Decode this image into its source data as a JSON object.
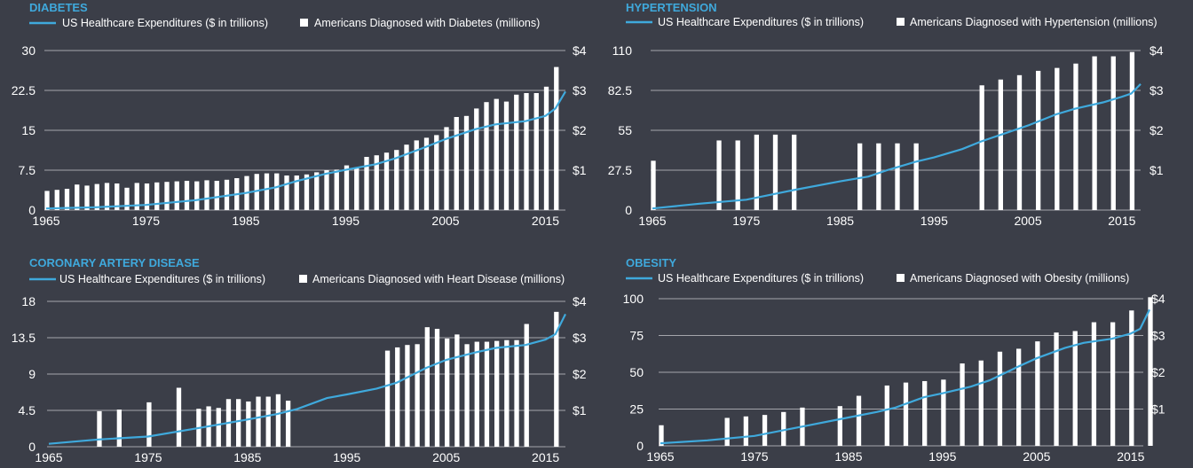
{
  "chart_data": [
    {
      "type": "bar",
      "title": "DIABETES",
      "legend_line": "US Healthcare Expenditures ($ in trillions)",
      "legend_bar": "Americans Diagnosed with Diabetes (millions)",
      "x_ticks": [
        "1965",
        "1975",
        "1985",
        "1995",
        "2005",
        "2015"
      ],
      "y_left_ticks": [
        "0",
        "7.5",
        "15",
        "22.5",
        "30"
      ],
      "y_right_ticks": [
        "$1",
        "$2",
        "$3",
        "$4"
      ],
      "ylim_left": [
        0,
        30
      ],
      "ylim_right": [
        0,
        4
      ],
      "xlim": [
        1965,
        2017
      ],
      "grid": true,
      "bars": {
        "years": [
          1965,
          1966,
          1967,
          1968,
          1969,
          1970,
          1971,
          1972,
          1973,
          1974,
          1975,
          1976,
          1977,
          1978,
          1979,
          1980,
          1981,
          1982,
          1983,
          1984,
          1985,
          1986,
          1987,
          1988,
          1989,
          1990,
          1991,
          1992,
          1993,
          1994,
          1995,
          1996,
          1997,
          1998,
          1999,
          2000,
          2001,
          2002,
          2003,
          2004,
          2005,
          2006,
          2007,
          2008,
          2009,
          2010,
          2011,
          2012,
          2013,
          2014,
          2015,
          2016
        ],
        "values": [
          3.6,
          3.8,
          4.0,
          4.8,
          4.6,
          4.9,
          5.1,
          5.0,
          4.2,
          5.1,
          5.0,
          5.2,
          5.3,
          5.4,
          5.5,
          5.4,
          5.6,
          5.5,
          5.7,
          6.0,
          6.4,
          6.8,
          6.9,
          6.9,
          6.5,
          6.5,
          6.7,
          7.1,
          7.5,
          7.6,
          8.4,
          7.9,
          10.0,
          10.3,
          10.8,
          11.3,
          12.3,
          13.1,
          13.6,
          14.1,
          15.6,
          17.5,
          17.7,
          19.1,
          20.3,
          20.9,
          20.4,
          21.7,
          22.0,
          22.0,
          23.2,
          26.9
        ]
      },
      "line": {
        "years": [
          1965,
          1970,
          1975,
          1980,
          1985,
          1988,
          1990,
          1993,
          1995,
          1998,
          2000,
          2003,
          2005,
          2008,
          2010,
          2013,
          2015,
          2016,
          2017
        ],
        "values": [
          0.04,
          0.07,
          0.13,
          0.25,
          0.43,
          0.57,
          0.72,
          0.91,
          1.01,
          1.15,
          1.3,
          1.58,
          1.78,
          2.03,
          2.15,
          2.23,
          2.36,
          2.55,
          2.97
        ]
      }
    },
    {
      "type": "bar",
      "title": "HYPERTENSION",
      "legend_line": "US Healthcare Expenditures ($ in trillions)",
      "legend_bar": "Americans Diagnosed with Hypertension (millions)",
      "x_ticks": [
        "1965",
        "1975",
        "1985",
        "1995",
        "2005",
        "2015"
      ],
      "y_left_ticks": [
        "0",
        "27.5",
        "55",
        "82.5",
        "110"
      ],
      "y_right_ticks": [
        "$1",
        "$2",
        "$3",
        "$4"
      ],
      "ylim_left": [
        0,
        110
      ],
      "ylim_right": [
        0,
        4
      ],
      "xlim": [
        1965,
        2017
      ],
      "grid": true,
      "bars": {
        "years": [
          1965,
          1972,
          1974,
          1976,
          1978,
          1980,
          1987,
          1989,
          1991,
          1993,
          2000,
          2002,
          2004,
          2006,
          2008,
          2010,
          2012,
          2014,
          2016
        ],
        "values": [
          34,
          48,
          48,
          52,
          52,
          52,
          46,
          46,
          46,
          46,
          86,
          90,
          93,
          96,
          98,
          101,
          106,
          106,
          109
        ]
      },
      "line": {
        "years": [
          1965,
          1970,
          1975,
          1980,
          1985,
          1988,
          1990,
          1993,
          1995,
          1998,
          2000,
          2003,
          2005,
          2008,
          2010,
          2013,
          2015,
          2016,
          2017
        ],
        "values": [
          0.04,
          0.16,
          0.26,
          0.5,
          0.72,
          0.84,
          1.0,
          1.21,
          1.32,
          1.53,
          1.72,
          1.96,
          2.12,
          2.4,
          2.54,
          2.7,
          2.84,
          2.92,
          3.16
        ]
      }
    },
    {
      "type": "bar",
      "title": "CORONARY ARTERY DISEASE",
      "legend_line": "US Healthcare Expenditures ($ in trillions)",
      "legend_bar": "Americans Diagnosed with Heart Disease (millions)",
      "x_ticks": [
        "1965",
        "1975",
        "1985",
        "1995",
        "2005",
        "2015"
      ],
      "y_left_ticks": [
        "0",
        "4.5",
        "9",
        "13.5",
        "18"
      ],
      "y_right_ticks": [
        "$1",
        "$2",
        "$3",
        "$4"
      ],
      "ylim_left": [
        0,
        18
      ],
      "ylim_right": [
        0,
        4
      ],
      "xlim": [
        1965,
        2017
      ],
      "grid": true,
      "bars": {
        "years": [
          1970,
          1972,
          1975,
          1978,
          1980,
          1981,
          1982,
          1983,
          1984,
          1985,
          1986,
          1987,
          1988,
          1989,
          1999,
          2000,
          2001,
          2002,
          2003,
          2004,
          2005,
          2006,
          2007,
          2008,
          2009,
          2010,
          2011,
          2012,
          2013,
          2016
        ],
        "values": [
          4.4,
          4.6,
          5.5,
          7.3,
          4.7,
          5.0,
          4.8,
          5.9,
          5.9,
          5.6,
          6.2,
          6.2,
          6.5,
          5.7,
          11.9,
          12.3,
          12.6,
          12.7,
          14.8,
          14.6,
          13.4,
          13.9,
          12.7,
          13.0,
          13.0,
          13.1,
          13.2,
          13.2,
          15.2,
          16.7
        ]
      },
      "line": {
        "years": [
          1965,
          1970,
          1975,
          1980,
          1985,
          1988,
          1990,
          1993,
          1995,
          1998,
          2000,
          2003,
          2005,
          2008,
          2010,
          2013,
          2015,
          2016,
          2017
        ],
        "values": [
          0.08,
          0.2,
          0.28,
          0.51,
          0.75,
          0.9,
          1.04,
          1.34,
          1.44,
          1.6,
          1.76,
          2.17,
          2.39,
          2.6,
          2.72,
          2.8,
          2.95,
          3.1,
          3.65
        ]
      }
    },
    {
      "type": "bar",
      "title": "OBESITY",
      "legend_line": "US Healthcare Expenditures ($ in trillions)",
      "legend_bar": "Americans Diagnosed with Obesity (millions)",
      "x_ticks": [
        "1965",
        "1975",
        "1985",
        "1995",
        "2005",
        "2015"
      ],
      "y_left_ticks": [
        "0",
        "25",
        "50",
        "75",
        "100"
      ],
      "y_right_ticks": [
        "$1",
        "$2",
        "$3",
        "$4"
      ],
      "ylim_left": [
        0,
        100
      ],
      "ylim_right": [
        0,
        4
      ],
      "xlim": [
        1965,
        2017
      ],
      "grid": true,
      "bars": {
        "years": [
          1965,
          1972,
          1974,
          1976,
          1978,
          1980,
          1984,
          1986,
          1989,
          1991,
          1993,
          1995,
          1997,
          1999,
          2001,
          2003,
          2005,
          2007,
          2009,
          2011,
          2013,
          2015,
          2017
        ],
        "values": [
          14,
          19,
          20,
          21,
          23,
          26,
          27,
          34,
          41,
          43,
          44,
          45,
          56,
          58,
          64,
          66,
          71,
          77,
          78,
          84,
          84,
          92,
          101
        ]
      },
      "line": {
        "years": [
          1965,
          1970,
          1975,
          1980,
          1985,
          1988,
          1990,
          1993,
          1995,
          1998,
          2000,
          2003,
          2005,
          2008,
          2010,
          2013,
          2015,
          2016,
          2017
        ],
        "values": [
          0.07,
          0.15,
          0.27,
          0.52,
          0.77,
          0.92,
          1.04,
          1.32,
          1.43,
          1.61,
          1.78,
          2.15,
          2.38,
          2.66,
          2.8,
          2.91,
          3.05,
          3.18,
          3.7
        ]
      }
    }
  ]
}
